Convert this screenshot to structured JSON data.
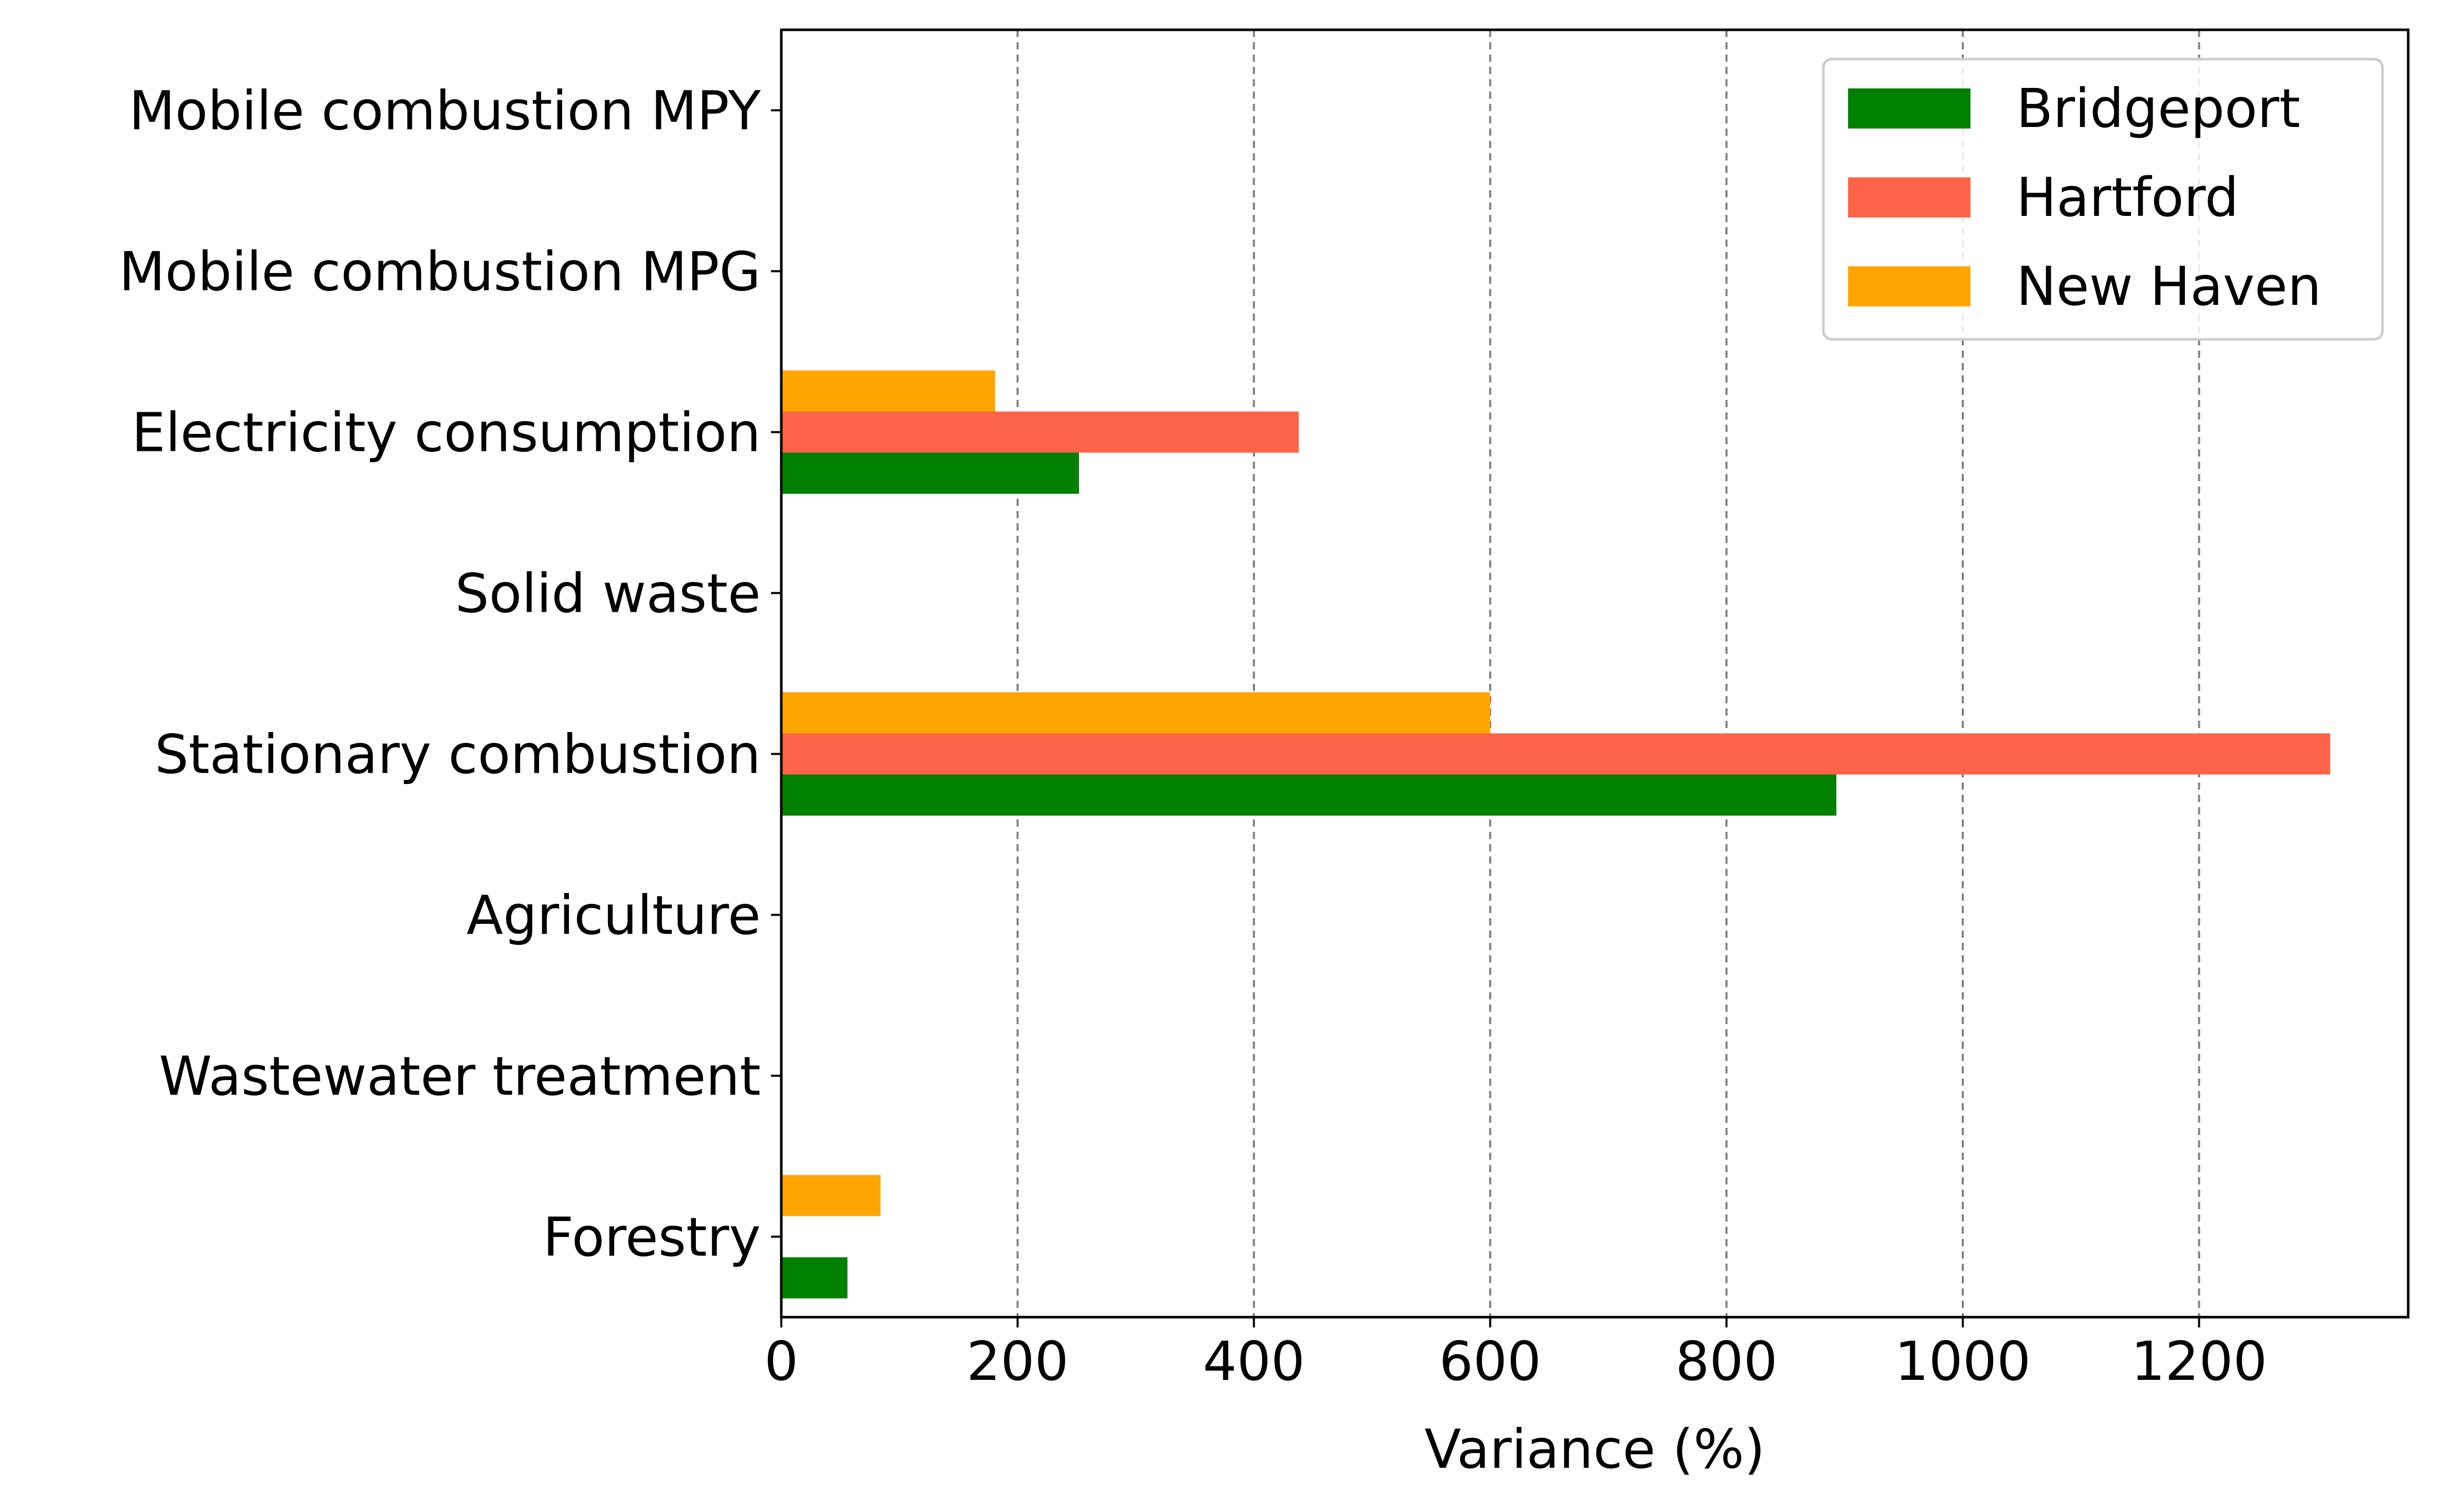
{
  "chart_data": {
    "type": "bar",
    "orientation": "horizontal",
    "categories": [
      "Mobile combustion MPY",
      "Mobile combustion MPG",
      "Electricity consumption",
      "Solid waste",
      "Stationary combustion",
      "Agriculture",
      "Wastewater treatment",
      "Forestry"
    ],
    "series": [
      {
        "name": "Bridgeport",
        "color": "#008000",
        "values": [
          0,
          0,
          252,
          0,
          893,
          0,
          0,
          56
        ]
      },
      {
        "name": "Hartford",
        "color": "#ff6347",
        "values": [
          0,
          0,
          438,
          0,
          1311,
          0,
          0,
          0
        ]
      },
      {
        "name": "New Haven",
        "color": "#ffa500",
        "values": [
          0,
          0,
          181,
          0,
          600,
          0,
          0,
          84
        ]
      }
    ],
    "title": "",
    "xlabel": "Variance (%)",
    "ylabel": "",
    "xlim": [
      0,
      1377
    ],
    "xticks": [
      0,
      200,
      400,
      600,
      800,
      1000,
      1200
    ],
    "xtick_labels": [
      "0",
      "200",
      "400",
      "600",
      "800",
      "1000",
      "1200"
    ],
    "grid": "x-dashed",
    "legend_position": "top-right"
  }
}
